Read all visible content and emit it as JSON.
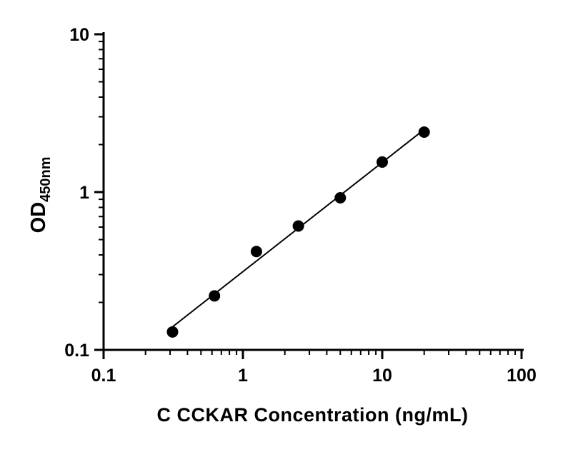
{
  "chart_data": {
    "type": "scatter",
    "title": "",
    "xlabel": "C CCKAR Concentration (ng/mL)",
    "ylabel_main": "OD",
    "ylabel_sub": "450nm",
    "x": [
      0.3125,
      0.625,
      1.25,
      2.5,
      5,
      10,
      20
    ],
    "y": [
      0.13,
      0.22,
      0.42,
      0.61,
      0.92,
      1.55,
      2.4
    ],
    "xscale": "log",
    "yscale": "log",
    "xlim": [
      0.1,
      100
    ],
    "ylim": [
      0.1,
      10
    ],
    "xticks": [
      0.1,
      1,
      10,
      100
    ],
    "xtick_labels": [
      "0.1",
      "1",
      "10",
      "100"
    ],
    "yticks": [
      0.1,
      1,
      10
    ],
    "ytick_labels": [
      "0.1",
      "1",
      "10"
    ],
    "grid": false,
    "legend": "none",
    "trendline": "linear-fit-in-log-space",
    "marker_color": "#000000",
    "line_color": "#000000",
    "axis_color": "#000000"
  }
}
